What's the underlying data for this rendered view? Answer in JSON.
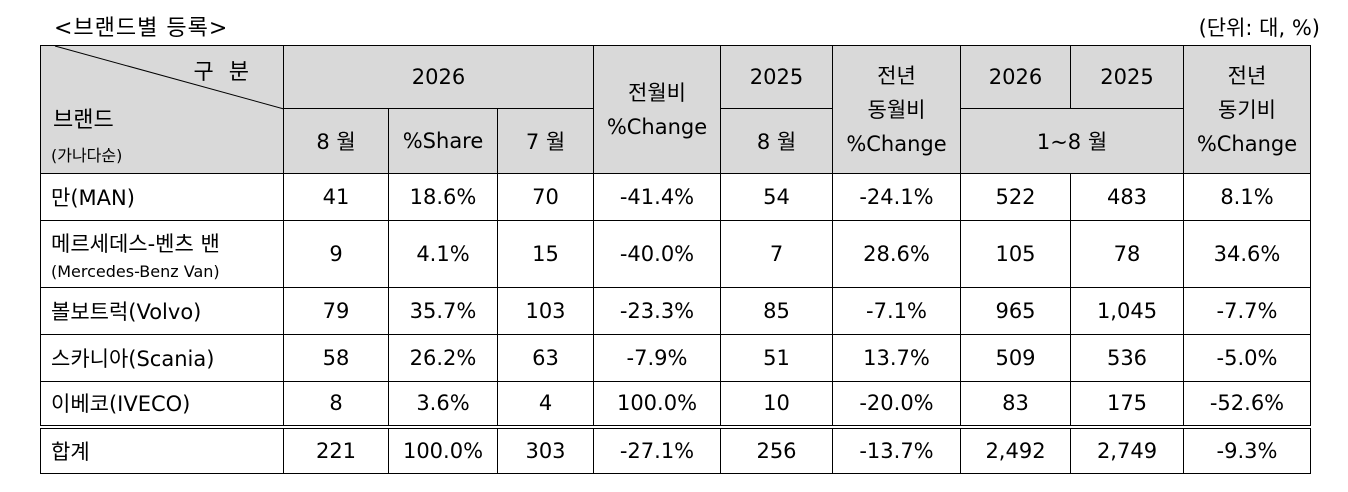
{
  "title": "<브랜드별 등록>",
  "unit": "(단위: 대, %)",
  "header": {
    "corner_top": "구 분",
    "corner_brand": "브랜드",
    "corner_note": "(가나다순)",
    "year_2026": "2026",
    "month_aug": "8 월",
    "share": "%Share",
    "month_jul": "7 월",
    "mom_line1": "전월비",
    "mom_change": "%Change",
    "year_2025": "2025",
    "month_aug_2025": "8 월",
    "yoy_line1": "전년",
    "yoy_line2": "동월비",
    "yoy_change": "%Change",
    "ytd_2026": "2026",
    "ytd_2025": "2025",
    "ytd_period": "1~8 월",
    "ytd_line1": "전년",
    "ytd_line2": "동기비",
    "ytd_change": "%Change"
  },
  "rows": [
    {
      "brand": "만(MAN)",
      "cells": [
        "41",
        "18.6%",
        "70",
        "-41.4%",
        "54",
        "-24.1%",
        "522",
        "483",
        "8.1%"
      ]
    },
    {
      "brand": "메르세데스-벤츠 밴",
      "brand_sub": "(Mercedes-Benz Van)",
      "cells": [
        "9",
        "4.1%",
        "15",
        "-40.0%",
        "7",
        "28.6%",
        "105",
        "78",
        "34.6%"
      ]
    },
    {
      "brand": "볼보트럭(Volvo)",
      "cells": [
        "79",
        "35.7%",
        "103",
        "-23.3%",
        "85",
        "-7.1%",
        "965",
        "1,045",
        "-7.7%"
      ]
    },
    {
      "brand": "스카니아(Scania)",
      "cells": [
        "58",
        "26.2%",
        "63",
        "-7.9%",
        "51",
        "13.7%",
        "509",
        "536",
        "-5.0%"
      ]
    },
    {
      "brand": "이베코(IVECO)",
      "cells": [
        "8",
        "3.6%",
        "4",
        "100.0%",
        "10",
        "-20.0%",
        "83",
        "175",
        "-52.6%"
      ]
    }
  ],
  "total": {
    "brand": "합계",
    "cells": [
      "221",
      "100.0%",
      "303",
      "-27.1%",
      "256",
      "-13.7%",
      "2,492",
      "2,749",
      "-9.3%"
    ]
  }
}
